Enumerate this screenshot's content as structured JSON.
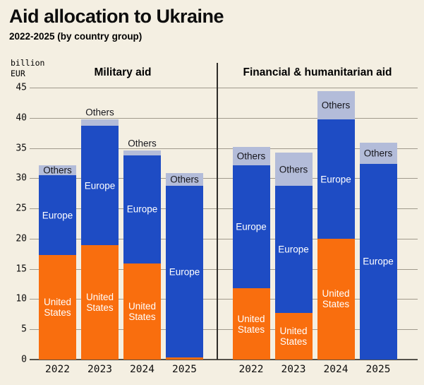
{
  "title": "Aid allocation to Ukraine",
  "subtitle": "2022-2025 (by country group)",
  "axis": {
    "unit_label": "billion\nEUR",
    "y_ticks": [
      0,
      5,
      10,
      15,
      20,
      25,
      30,
      35,
      40,
      45
    ],
    "y_max": 45,
    "years": [
      "2022",
      "2023",
      "2024",
      "2025"
    ]
  },
  "series_labels": {
    "united_states": "United States",
    "europe": "Europe",
    "others": "Others"
  },
  "colors": {
    "background": "#f4efe2",
    "united_states": "#f96e0e",
    "europe": "#1e4cc4",
    "others": "#b3bcd9",
    "grid": "#a09a8c",
    "baseline": "#55524a",
    "divider": "#2e2c28",
    "text": "#0d0d0d",
    "label_light": "#ffffff",
    "label_dark": "#16161c"
  },
  "chart_data": [
    {
      "type": "bar",
      "stacked": true,
      "title": "Military aid",
      "categories": [
        "2022",
        "2023",
        "2024",
        "2025"
      ],
      "series": [
        {
          "name": "United States",
          "values": [
            17.3,
            18.9,
            15.9,
            0.3
          ]
        },
        {
          "name": "Europe",
          "values": [
            13.2,
            19.8,
            17.9,
            28.4
          ]
        },
        {
          "name": "Others",
          "values": [
            1.7,
            1.0,
            0.8,
            2.2
          ]
        }
      ],
      "totals": [
        32.2,
        39.7,
        34.6,
        30.9
      ],
      "ylabel": "billion EUR",
      "ylim": [
        0,
        45
      ],
      "grid": true,
      "legend": "labels-on-bars"
    },
    {
      "type": "bar",
      "stacked": true,
      "title": "Financial & humanitarian aid",
      "categories": [
        "2022",
        "2023",
        "2024",
        "2025"
      ],
      "series": [
        {
          "name": "United States",
          "values": [
            11.8,
            7.7,
            20.0,
            0.0
          ]
        },
        {
          "name": "Europe",
          "values": [
            20.3,
            21.1,
            19.7,
            32.4
          ]
        },
        {
          "name": "Others",
          "values": [
            3.1,
            5.4,
            4.7,
            3.5
          ]
        }
      ],
      "totals": [
        35.2,
        34.2,
        44.4,
        35.9
      ],
      "ylabel": "billion EUR",
      "ylim": [
        0,
        45
      ],
      "grid": true,
      "legend": "labels-on-bars"
    }
  ]
}
